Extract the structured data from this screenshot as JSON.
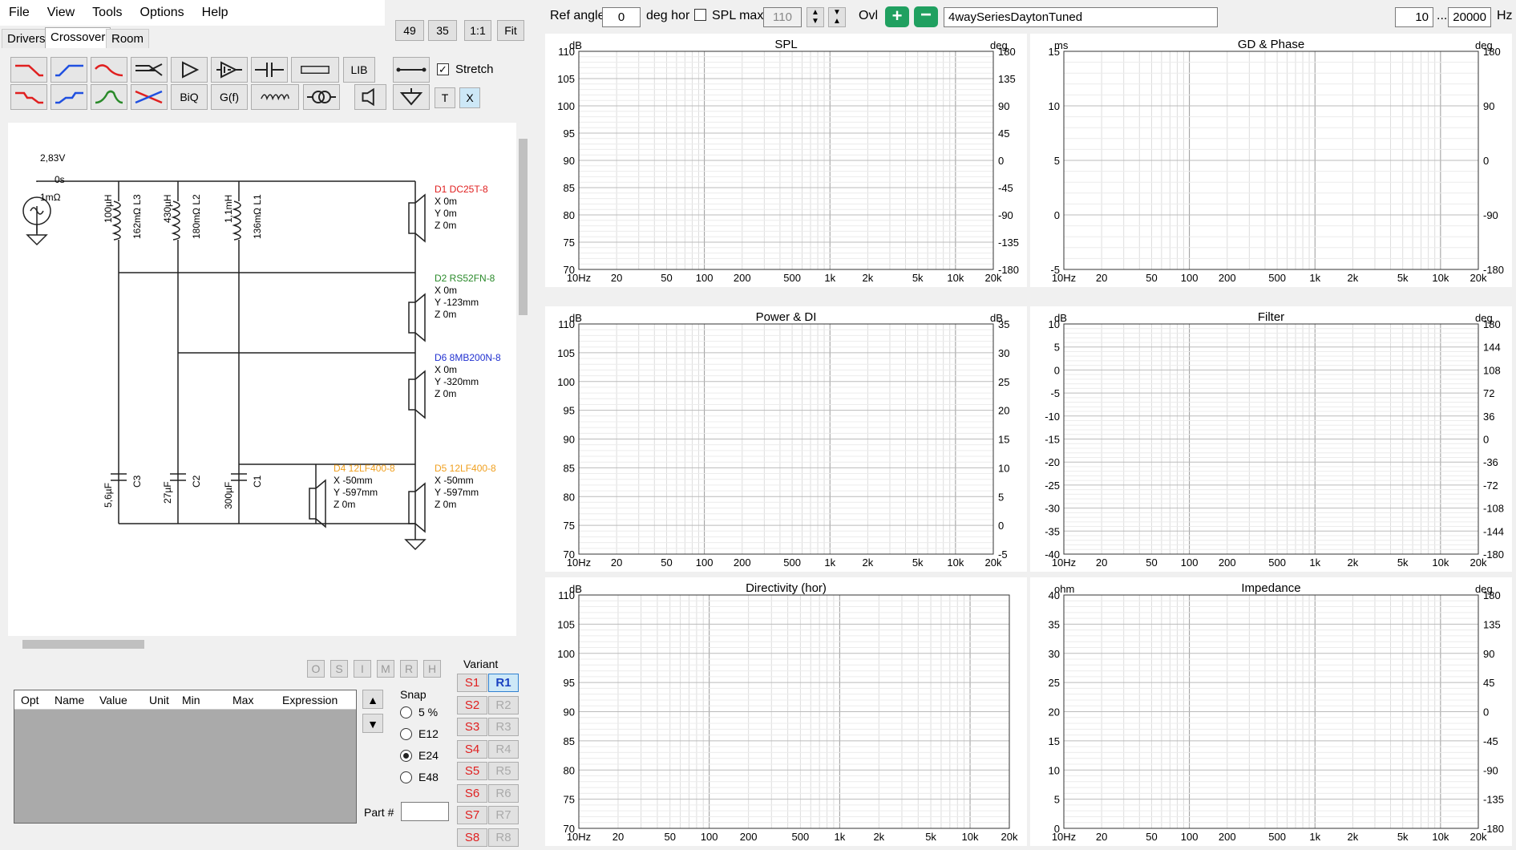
{
  "menu": [
    "File",
    "View",
    "Tools",
    "Options",
    "Help"
  ],
  "tabs": [
    "Drivers",
    "Crossover",
    "Room"
  ],
  "top_buttons": [
    "49",
    "35",
    "1:1",
    "Fit"
  ],
  "toolbar": {
    "lib": "LIB",
    "stretch": "Stretch",
    "biq": "BiQ",
    "gf": "G(f)",
    "t": "T",
    "x": "X"
  },
  "schematic": {
    "source": {
      "v": "2,83V",
      "t": "0s",
      "r": "1mΩ"
    },
    "inductors": [
      {
        "value": "100µH",
        "detail": "162mΩ L3"
      },
      {
        "value": "430µH",
        "detail": "180mΩ L2"
      },
      {
        "value": "1,1mH",
        "detail": "136mΩ L1"
      }
    ],
    "capacitors": [
      {
        "value": "5,6µF",
        "name": "C3"
      },
      {
        "value": "27µF",
        "name": "C2"
      },
      {
        "value": "300µF",
        "name": "C1"
      }
    ],
    "drivers": [
      {
        "name": "D1 DC25T-8",
        "x": "X 0m",
        "y": "Y 0m",
        "z": "Z 0m",
        "color": "#e02020"
      },
      {
        "name": "D2 RS52FN-8",
        "x": "X 0m",
        "y": "Y -123mm",
        "z": "Z 0m",
        "color": "#2a8a2a"
      },
      {
        "name": "D6 8MB200N-8",
        "x": "X 0m",
        "y": "Y -320mm",
        "z": "Z 0m",
        "color": "#2030d0"
      },
      {
        "name": "D4 12LF400-8",
        "x": "X -50mm",
        "y": "Y -597mm",
        "z": "Z 0m",
        "color": "#f0a020"
      },
      {
        "name": "D5 12LF400-8",
        "x": "X -50mm",
        "y": "Y -597mm",
        "z": "Z 0m",
        "color": "#f0a020"
      }
    ]
  },
  "omsi": [
    "O",
    "S",
    "I",
    "M",
    "R",
    "H"
  ],
  "param_table": {
    "headers": [
      "Opt",
      "Name",
      "Value",
      "Unit",
      "Min",
      "Max",
      "Expression"
    ]
  },
  "snap": {
    "label": "Snap",
    "options": [
      "5 %",
      "E12",
      "E24",
      "E48"
    ],
    "selected": "E24"
  },
  "part_label": "Part #",
  "variant": {
    "label": "Variant",
    "s": [
      "S1",
      "S2",
      "S3",
      "S4",
      "S5",
      "S6",
      "S7",
      "S8"
    ],
    "r": [
      "R1",
      "R2",
      "R3",
      "R4",
      "R5",
      "R6",
      "R7",
      "R8"
    ],
    "active": "R1"
  },
  "top_controls": {
    "ref_angle_label": "Ref angle",
    "ref_angle": "0",
    "deg_hor": "deg hor",
    "spl_max_label": "SPL max",
    "spl_max": "110",
    "ovl": "Ovl",
    "project": "4waySeriesDaytonTuned",
    "fmin": "10",
    "dots": "...",
    "fmax": "20000",
    "hz": "Hz"
  },
  "colors": {
    "tweeter": "#e02020",
    "mid": "#2a8a2a",
    "midbass": "#2030d0",
    "woofer": "#f0a020",
    "sum": "#606060",
    "di": "#cc40cc"
  },
  "x_ticks": [
    "10Hz",
    "20",
    "50",
    "100",
    "200",
    "500",
    "1k",
    "2k",
    "5k",
    "10k",
    "20k"
  ],
  "charts": [
    {
      "id": "spl",
      "title": "SPL",
      "left_unit": "dB",
      "right_unit": "deg",
      "left_ticks": [
        "110",
        "105",
        "100",
        "95",
        "90",
        "85",
        "80",
        "75",
        "70"
      ],
      "right_ticks": [
        "180",
        "135",
        "90",
        "45",
        "0",
        "-45",
        "-90",
        "-135",
        "-180"
      ]
    },
    {
      "id": "gd",
      "title": "GD & Phase",
      "left_unit": "ms",
      "right_unit": "deg",
      "left_ticks": [
        "15",
        "10",
        "5",
        "0",
        "-5"
      ],
      "right_ticks": [
        "180",
        "90",
        "0",
        "-90",
        "-180"
      ]
    },
    {
      "id": "power",
      "title": "Power & DI",
      "left_unit": "dB",
      "right_unit": "dB",
      "left_ticks": [
        "110",
        "105",
        "100",
        "95",
        "90",
        "85",
        "80",
        "75",
        "70"
      ],
      "right_ticks": [
        "35",
        "30",
        "25",
        "20",
        "15",
        "10",
        "5",
        "0",
        "-5"
      ]
    },
    {
      "id": "filter",
      "title": "Filter",
      "left_unit": "dB",
      "right_unit": "deg",
      "left_ticks": [
        "10",
        "5",
        "0",
        "-5",
        "-10",
        "-15",
        "-20",
        "-25",
        "-30",
        "-35",
        "-40"
      ],
      "right_ticks": [
        "180",
        "144",
        "108",
        "72",
        "36",
        "0",
        "-36",
        "-72",
        "-108",
        "-144",
        "-180"
      ]
    },
    {
      "id": "dir",
      "title": "Directivity (hor)",
      "left_unit": "dB",
      "right_unit": "",
      "left_ticks": [
        "110",
        "105",
        "100",
        "95",
        "90",
        "85",
        "80",
        "75",
        "70"
      ],
      "right_ticks": []
    },
    {
      "id": "imp",
      "title": "Impedance",
      "left_unit": "ohm",
      "right_unit": "deg",
      "left_ticks": [
        "40",
        "35",
        "30",
        "25",
        "20",
        "15",
        "10",
        "5",
        "0"
      ],
      "right_ticks": [
        "180",
        "135",
        "90",
        "45",
        "0",
        "-45",
        "-90",
        "-135",
        "-180"
      ]
    }
  ]
}
